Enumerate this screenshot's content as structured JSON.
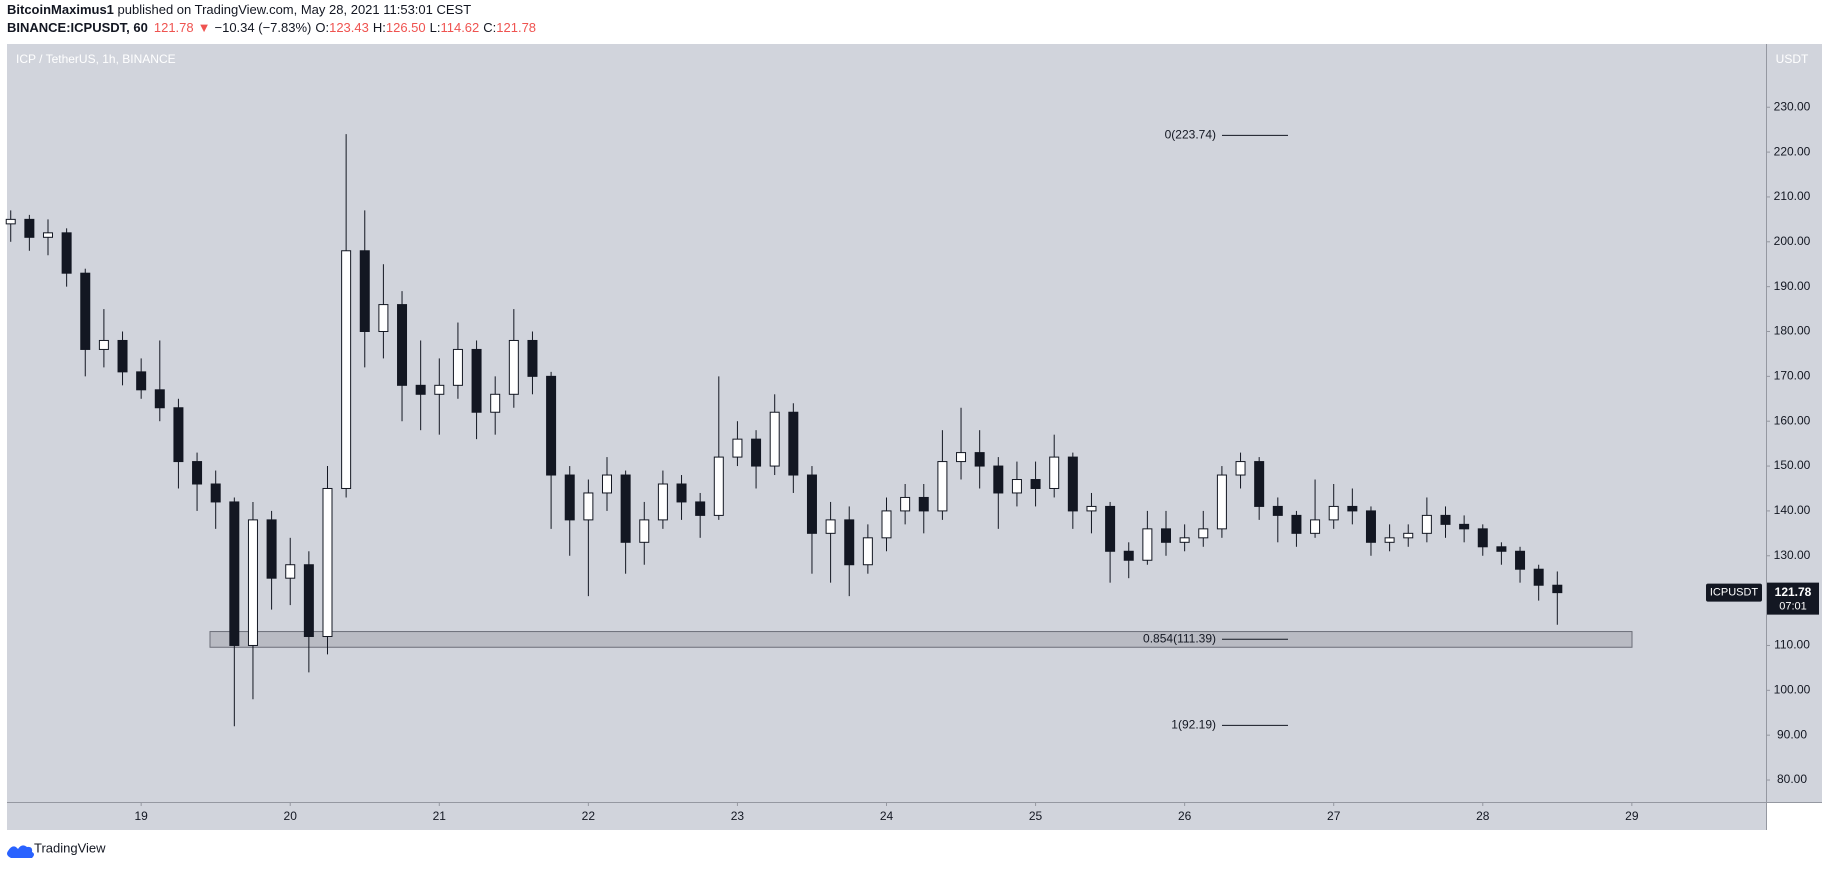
{
  "header": {
    "author": "BitcoinMaximus1",
    "published": " published on TradingView.com, May 28, 2021 11:53:01 CEST",
    "symbol": "BINANCE:ICPUSDT, 60",
    "last": "121.78",
    "arrow": "▼",
    "change": "−10.34 (−7.83%)",
    "o_label": "O:",
    "o": "123.43",
    "h_label": "H:",
    "h": "126.50",
    "l_label": "L:",
    "l": "114.62",
    "c_label": "C:",
    "c": "121.78"
  },
  "footer": {
    "brand": "TradingView"
  },
  "chart_data": {
    "type": "candlestick",
    "title": "ICP / TetherUS, 1h, BINANCE",
    "y_axis_label": "USDT",
    "up_color": "#ffffff",
    "down_color": "#131722",
    "border_color": "#131722",
    "background": "#d1d4dc",
    "grid": false,
    "x": [
      18.125,
      18.25,
      18.375,
      18.5,
      18.625,
      18.75,
      18.875,
      19,
      19.125,
      19.25,
      19.375,
      19.5,
      19.625,
      19.75,
      19.875,
      20,
      20.125,
      20.25,
      20.375,
      20.5,
      20.625,
      20.75,
      20.875,
      21,
      21.125,
      21.25,
      21.375,
      21.5,
      21.625,
      21.75,
      21.875,
      22,
      22.125,
      22.25,
      22.375,
      22.5,
      22.625,
      22.75,
      22.875,
      23,
      23.125,
      23.25,
      23.375,
      23.5,
      23.625,
      23.75,
      23.875,
      24,
      24.125,
      24.25,
      24.375,
      24.5,
      24.625,
      24.75,
      24.875,
      25,
      25.125,
      25.25,
      25.375,
      25.5,
      25.625,
      25.75,
      25.875,
      26,
      26.125,
      26.25,
      26.375,
      26.5,
      26.625,
      26.75,
      26.875,
      27,
      27.125,
      27.25,
      27.375,
      27.5,
      27.625,
      27.75,
      27.875,
      28,
      28.125,
      28.25,
      28.375,
      28.5
    ],
    "open": [
      204,
      205,
      201,
      202,
      193,
      176,
      178,
      171,
      167,
      163,
      151,
      146,
      142,
      110,
      138,
      125,
      128,
      112,
      145,
      198,
      180,
      186,
      168,
      166,
      168,
      176,
      162,
      166,
      178,
      170,
      148,
      138,
      144,
      148,
      133,
      138,
      146,
      142,
      139,
      152,
      156,
      150,
      162,
      148,
      135,
      138,
      128,
      134,
      140,
      143,
      140,
      151,
      153,
      150,
      144,
      147,
      145,
      152,
      140,
      141,
      131,
      129,
      136,
      133,
      134,
      136,
      148,
      151,
      141,
      139,
      135,
      138,
      141,
      140,
      133,
      134,
      135,
      139,
      137,
      136,
      132,
      131,
      127,
      123.43
    ],
    "high": [
      207,
      206,
      205,
      203,
      194,
      185,
      180,
      174,
      178,
      165,
      153,
      149,
      143,
      142,
      140,
      134,
      131,
      150,
      224,
      207,
      195,
      189,
      178,
      174,
      182,
      178,
      170,
      185,
      180,
      171,
      150,
      147,
      152,
      149,
      142,
      149,
      148,
      144,
      170,
      160,
      158,
      166,
      164,
      150,
      142,
      141,
      137,
      143,
      146,
      146,
      158,
      163,
      158,
      152,
      151,
      151,
      157,
      153,
      144,
      142,
      133,
      140,
      140,
      137,
      140,
      150,
      153,
      152,
      143,
      140,
      147,
      146,
      145,
      141,
      137,
      137,
      143,
      141,
      139,
      137,
      133,
      132,
      128,
      126.5
    ],
    "low": [
      200,
      198,
      197,
      190,
      170,
      172,
      168,
      165,
      160,
      145,
      140,
      136,
      92,
      98,
      118,
      119,
      104,
      108,
      143,
      172,
      174,
      160,
      158,
      157,
      165,
      156,
      157,
      163,
      166,
      136,
      130,
      121,
      140,
      126,
      128,
      136,
      138,
      134,
      138,
      150,
      145,
      148,
      144,
      126,
      124,
      121,
      126,
      131,
      137,
      135,
      138,
      147,
      145,
      136,
      141,
      141,
      143,
      136,
      135,
      124,
      125,
      128,
      130,
      131,
      132,
      134,
      145,
      138,
      133,
      132,
      134,
      136,
      137,
      130,
      131,
      132,
      133,
      134,
      133,
      130,
      128,
      124,
      120,
      114.62
    ],
    "close": [
      205,
      201,
      202,
      193,
      176,
      178,
      171,
      167,
      163,
      151,
      146,
      142,
      110,
      138,
      125,
      128,
      112,
      145,
      198,
      180,
      186,
      168,
      166,
      168,
      176,
      162,
      166,
      178,
      170,
      148,
      138,
      144,
      148,
      133,
      138,
      146,
      142,
      139,
      152,
      156,
      150,
      162,
      148,
      135,
      138,
      128,
      134,
      140,
      143,
      140,
      151,
      153,
      150,
      144,
      147,
      145,
      152,
      140,
      141,
      131,
      129,
      136,
      133,
      134,
      136,
      148,
      151,
      141,
      139,
      135,
      138,
      141,
      140,
      133,
      134,
      135,
      139,
      137,
      136,
      132,
      131,
      127,
      123.43,
      121.78
    ],
    "xlim": [
      18.1,
      29.9
    ],
    "xticks": [
      19,
      20,
      21,
      22,
      23,
      24,
      25,
      26,
      27,
      28,
      29
    ],
    "ylim": [
      75.1,
      244.1
    ],
    "yticks": [
      {
        "value": 80,
        "label": "80.00"
      },
      {
        "value": 90,
        "label": "90.00"
      },
      {
        "value": 100,
        "label": "100.00"
      },
      {
        "value": 110,
        "label": "110.00"
      },
      {
        "value": 120,
        "label": "120.00"
      },
      {
        "value": 130,
        "label": "130.00"
      },
      {
        "value": 140,
        "label": "140.00"
      },
      {
        "value": 150,
        "label": "150.00"
      },
      {
        "value": 160,
        "label": "160.00"
      },
      {
        "value": 170,
        "label": "170.00"
      },
      {
        "value": 180,
        "label": "180.00"
      },
      {
        "value": 190,
        "label": "190.00"
      },
      {
        "value": 200,
        "label": "200.00"
      },
      {
        "value": 210,
        "label": "210.00"
      },
      {
        "value": 220,
        "label": "220.00"
      },
      {
        "value": 230,
        "label": "230.00"
      }
    ],
    "fib_levels": [
      {
        "value": 223.74,
        "label": "0(223.74)"
      },
      {
        "value": 111.39,
        "label": "0.854(111.39)"
      },
      {
        "value": 92.19,
        "label": "1(92.19)"
      }
    ],
    "support_zone": [
      109.6,
      113.1
    ],
    "price_tag": {
      "symbol": "ICPUSDT",
      "value": 121.78,
      "label": "121.78",
      "countdown": "07:01"
    }
  }
}
